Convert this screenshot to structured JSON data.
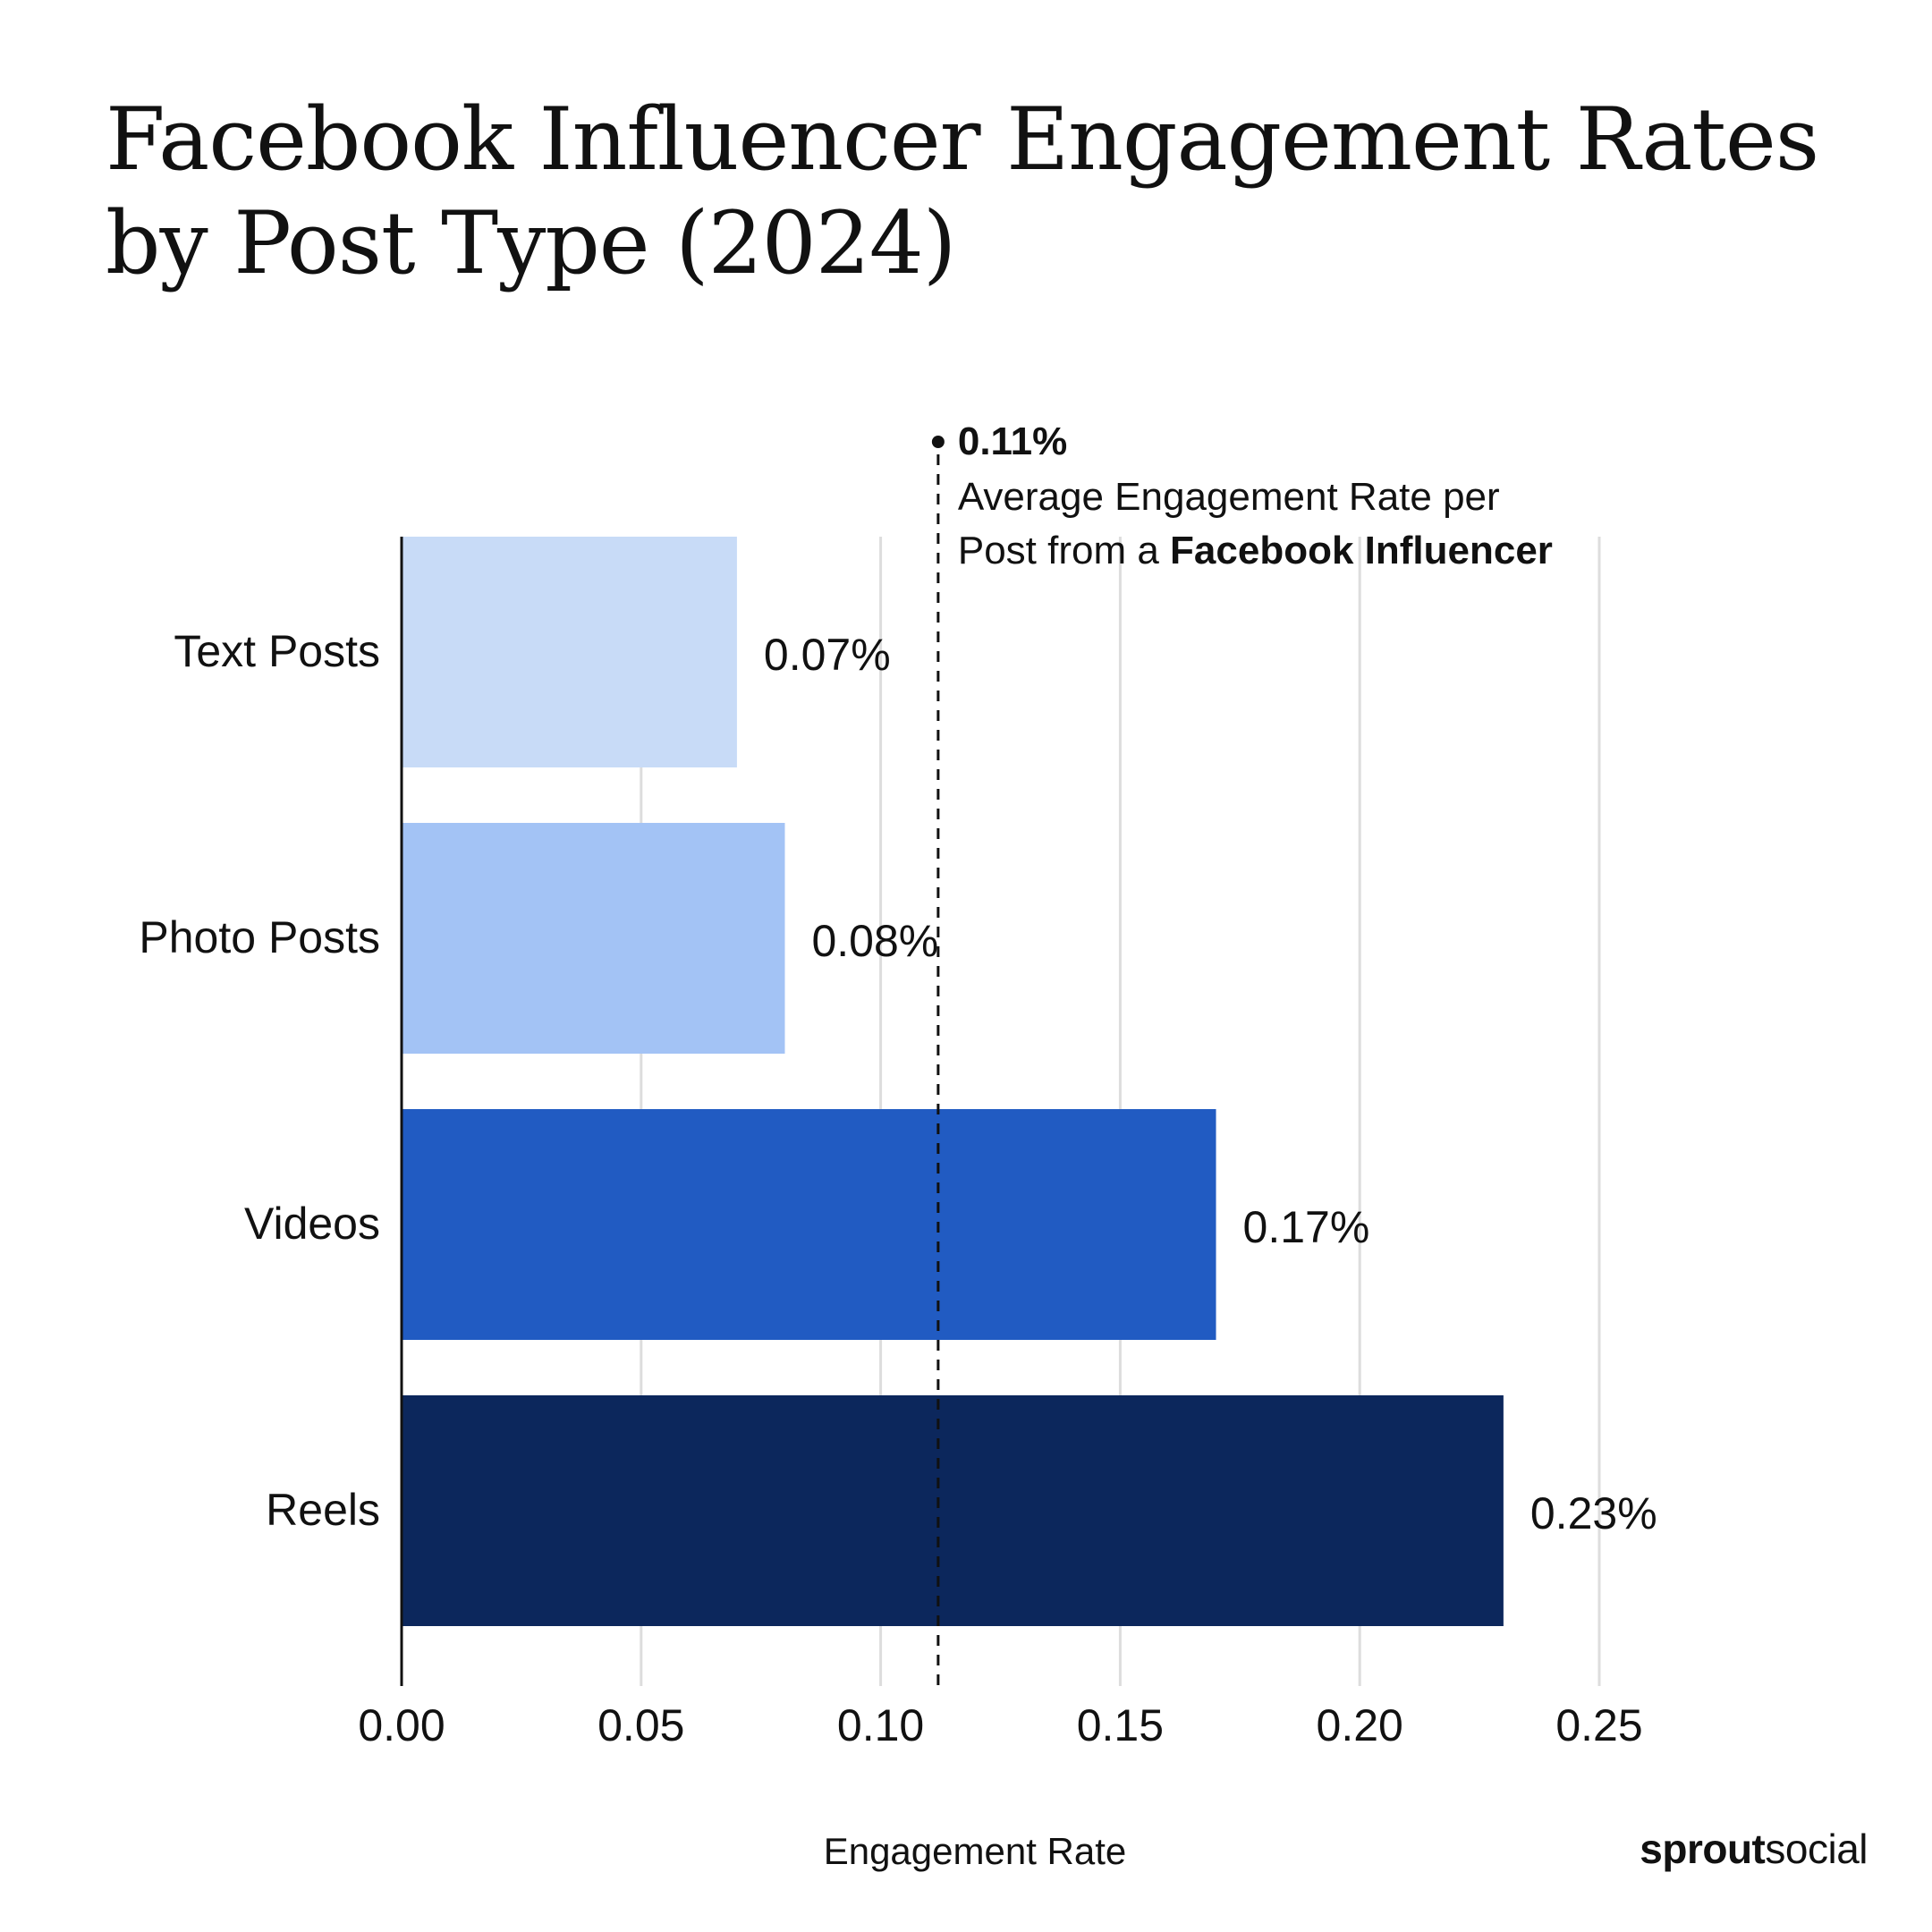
{
  "title": "Facebook Influencer Engagement Rates by Post Type (2024)",
  "brand": {
    "part1": "sprout",
    "part2": "social"
  },
  "chart_data": {
    "type": "bar",
    "orientation": "horizontal",
    "title": "Facebook Influencer Engagement Rates by Post Type (2024)",
    "xlabel": "Engagement Rate",
    "ylabel": "",
    "xlim": [
      0,
      0.25
    ],
    "xticks": [
      "0.00",
      "0.05",
      "0.10",
      "0.15",
      "0.20",
      "0.25"
    ],
    "grid": "vertical",
    "categories": [
      "Text Posts",
      "Photo Posts",
      "Videos",
      "Reels"
    ],
    "values": [
      0.07,
      0.08,
      0.17,
      0.23
    ],
    "value_labels": [
      "0.07%",
      "0.08%",
      "0.17%",
      "0.23%"
    ],
    "colors": [
      "#c8dbf7",
      "#a3c3f5",
      "#215bc2",
      "#0c275c"
    ],
    "reference_line": {
      "value": 0.112,
      "style": "dashed",
      "label_value": "0.11%",
      "label_line1": "Average Engagement Rate per",
      "label_line2_plain": "Post from a ",
      "label_line2_bold": "Facebook Influencer"
    }
  }
}
